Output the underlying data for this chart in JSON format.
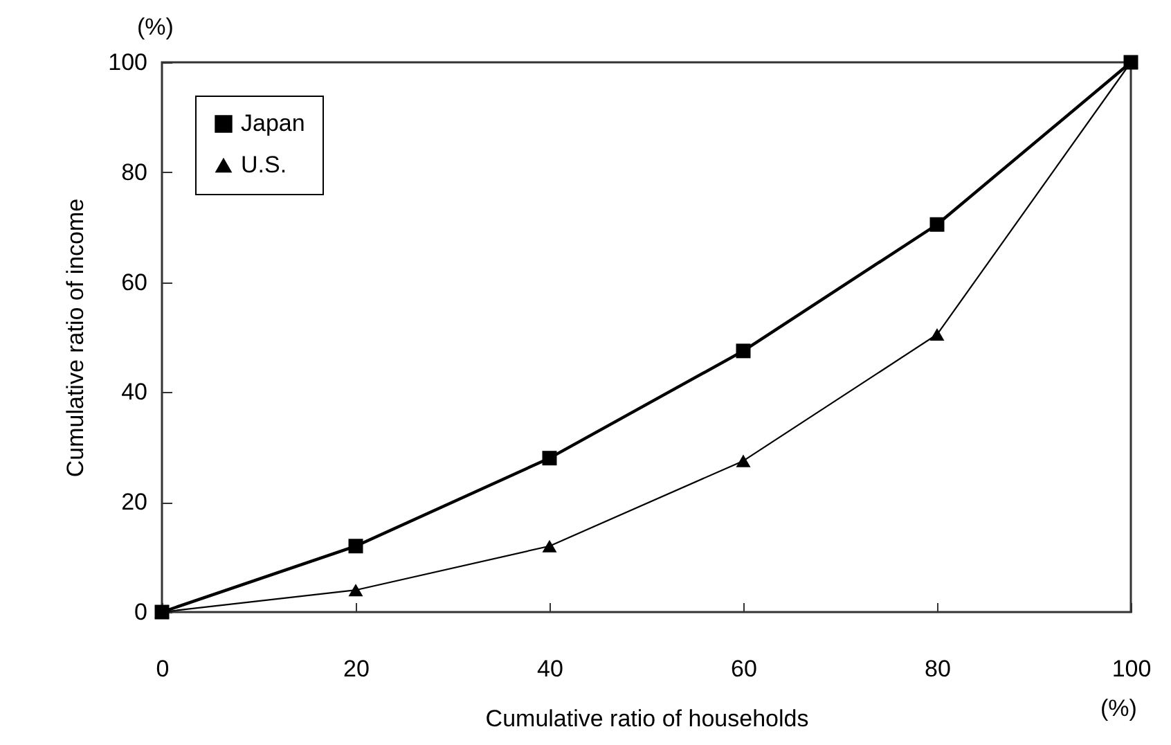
{
  "chart_data": {
    "type": "line",
    "xlabel": "Cumulative ratio of households",
    "ylabel": "Cumulative ratio of income",
    "annotations": [
      "(%)",
      "(%)"
    ],
    "x": [
      0,
      20,
      40,
      60,
      80,
      100
    ],
    "series": [
      {
        "name": "Japan",
        "color": "#000000",
        "marker": "square",
        "values": [
          0,
          12,
          28,
          47.5,
          70.5,
          100
        ]
      },
      {
        "name": "U.S.",
        "color": "#000000",
        "marker": "triangle",
        "values": [
          0,
          4,
          12,
          27.5,
          50.5,
          100
        ]
      }
    ],
    "xlim": [
      0,
      100
    ],
    "xticks": [
      0,
      20,
      40,
      60,
      80,
      100
    ],
    "ylim": [
      0,
      100
    ],
    "yticks": [
      0,
      20,
      40,
      60,
      80,
      100
    ],
    "grid": false,
    "legend": "top left",
    "line_style": "solid"
  }
}
